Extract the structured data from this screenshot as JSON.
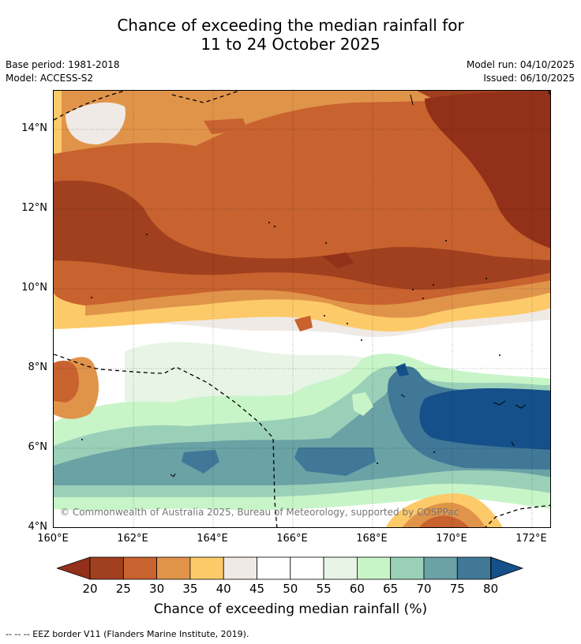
{
  "title_line1": "Chance of exceeding the median rainfall for",
  "title_line2": "11 to 24 October 2025",
  "base_period": "Base period: 1981-2018",
  "model": "Model: ACCESS-S2",
  "model_run": "Model run: 04/10/2025",
  "issued": "Issued: 06/10/2025",
  "map": {
    "lat_labels": [
      "14°N",
      "12°N",
      "10°N",
      "8°N",
      "6°N",
      "4°N"
    ],
    "lon_labels": [
      "160°E",
      "162°E",
      "164°E",
      "166°E",
      "168°E",
      "170°E",
      "172°E"
    ],
    "copyright": "© Commonwealth of Australia 2025, Bureau of Meteorology, supported by COSPPac"
  },
  "colorbar": {
    "title": "Chance of exceeding median rainfall (%)",
    "ticks": [
      "20",
      "25",
      "30",
      "35",
      "40",
      "45",
      "50",
      "55",
      "60",
      "65",
      "70",
      "75",
      "80"
    ],
    "colors": [
      "#a0401f",
      "#c8622f",
      "#e0944a",
      "#fdca6a",
      "#efeae6",
      "#ffffff",
      "#ffffff",
      "#e8f5e6",
      "#c8f5c8",
      "#9bd0b8",
      "#6aa2a6",
      "#417898"
    ],
    "under_color": "#923019",
    "over_color": "#15508a"
  },
  "footer": "-- -- -- EEZ border V11 (Flanders Marine Institute, 2019)."
}
